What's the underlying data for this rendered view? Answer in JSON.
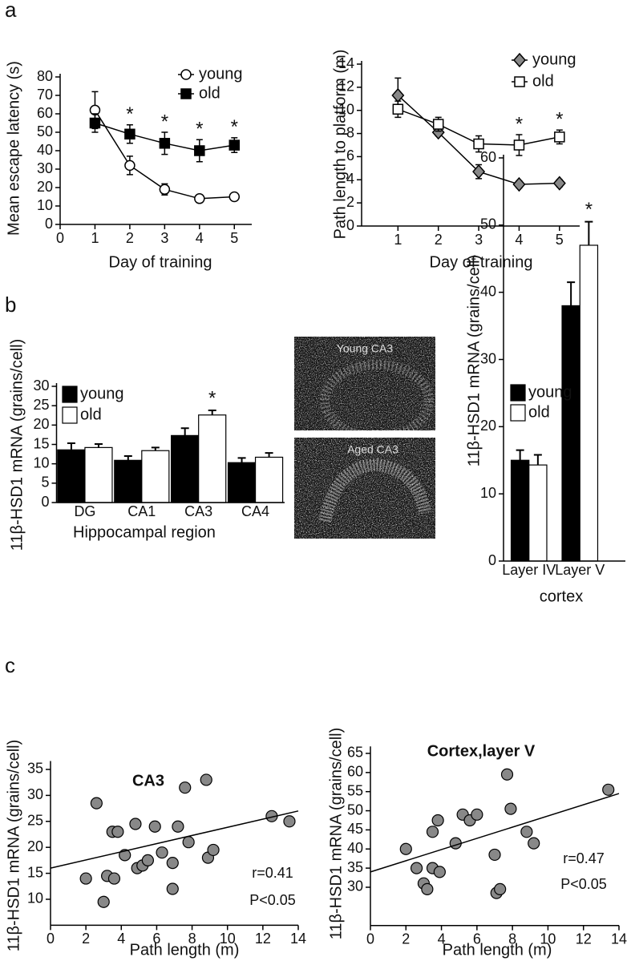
{
  "panel_labels": [
    "a",
    "b",
    "c"
  ],
  "micrographs": [
    "Young CA3",
    "Aged CA3"
  ],
  "chart_data": [
    {
      "type": "line",
      "xlabel": "Day of training",
      "ylabel": "Mean escape latency (s)",
      "x": [
        1,
        2,
        3,
        4,
        5
      ],
      "xlim": [
        0,
        5.5
      ],
      "xticks": [
        0,
        1,
        2,
        3,
        4,
        5
      ],
      "ylim": [
        0,
        80
      ],
      "yticks": [
        0,
        10,
        20,
        30,
        40,
        50,
        60,
        70,
        80
      ],
      "series": [
        {
          "name": "young",
          "color": "#000000",
          "marker": "circle-open",
          "values": [
            62,
            32,
            19,
            14,
            15
          ],
          "errors": [
            10,
            5,
            3,
            1,
            1
          ]
        },
        {
          "name": "old",
          "color": "#000000",
          "marker": "square-filled",
          "values": [
            55,
            49,
            44,
            40,
            43
          ],
          "errors": [
            5,
            5,
            6,
            6,
            4
          ]
        }
      ],
      "annotations": [
        {
          "text": "*",
          "x": 2
        },
        {
          "text": "*",
          "x": 3
        },
        {
          "text": "*",
          "x": 4
        },
        {
          "text": "*",
          "x": 5
        }
      ]
    },
    {
      "type": "line",
      "xlabel": "Day of training",
      "ylabel": "Path length to platform (m)",
      "x": [
        1,
        2,
        3,
        4,
        5
      ],
      "xlim": [
        0.1,
        5.5
      ],
      "xticks": [
        1,
        2,
        3,
        4,
        5
      ],
      "ylim": [
        0,
        14
      ],
      "yticks": [
        0,
        2,
        4,
        6,
        8,
        10,
        12,
        14
      ],
      "series": [
        {
          "name": "young",
          "color": "#888888",
          "marker": "diamond-filled",
          "values": [
            11.3,
            8.1,
            4.7,
            3.6,
            3.7
          ],
          "errors": [
            1.5,
            0.3,
            0.6,
            0.3,
            0.3
          ]
        },
        {
          "name": "old",
          "color": "#000000",
          "marker": "square-open",
          "values": [
            10.1,
            8.8,
            7.1,
            7.0,
            7.7
          ],
          "errors": [
            0.7,
            0.6,
            0.7,
            0.9,
            0.6
          ]
        }
      ],
      "annotations": [
        {
          "text": "*",
          "x": 4
        },
        {
          "text": "*",
          "x": 5
        }
      ]
    },
    {
      "type": "bar",
      "xlabel": "Hippocampal region",
      "ylabel": "11β-HSD1 mRNA (grains/cell)",
      "categories": [
        "DG",
        "CA1",
        "CA3",
        "CA4"
      ],
      "ylim": [
        0,
        30
      ],
      "yticks": [
        0,
        5,
        10,
        15,
        20,
        25,
        30
      ],
      "series": [
        {
          "name": "young",
          "color": "#000000",
          "values": [
            13.6,
            10.9,
            17.3,
            10.3
          ],
          "errors": [
            1.7,
            1.1,
            1.9,
            1.2
          ]
        },
        {
          "name": "old",
          "color": "#ffffff",
          "values": [
            14.2,
            13.4,
            22.6,
            11.7
          ],
          "errors": [
            0.9,
            0.8,
            1.2,
            1.1
          ]
        }
      ],
      "annotations": [
        {
          "text": "*",
          "category": 2
        }
      ]
    },
    {
      "type": "bar",
      "xlabel": "cortex",
      "ylabel": "11β-HSD1 mRNA (grains/cell)",
      "categories": [
        "Layer IV",
        "Layer V"
      ],
      "ylim": [
        0,
        60
      ],
      "yticks": [
        0,
        10,
        20,
        30,
        40,
        50,
        60
      ],
      "series": [
        {
          "name": "young",
          "color": "#000000",
          "values": [
            15,
            38
          ],
          "errors": [
            1.5,
            3.5
          ]
        },
        {
          "name": "old",
          "color": "#ffffff",
          "values": [
            14.3,
            47
          ],
          "errors": [
            1.5,
            3.5
          ]
        }
      ],
      "annotations": [
        {
          "text": "*",
          "category": 1
        }
      ]
    },
    {
      "type": "scatter",
      "title": "CA3",
      "xlabel": "Path length (m)",
      "ylabel": "11β-HSD1 mRNA (grains/cell)",
      "xlim": [
        0,
        14
      ],
      "xticks": [
        0,
        2,
        4,
        6,
        8,
        10,
        12,
        14
      ],
      "ylim": [
        5,
        36
      ],
      "yticks": [
        10,
        15,
        20,
        25,
        30,
        35
      ],
      "color": "#888888",
      "x": [
        2,
        2.6,
        3.0,
        3.2,
        3.5,
        3.6,
        3.8,
        4.2,
        4.8,
        4.9,
        5.2,
        5.5,
        5.9,
        6.3,
        6.9,
        6.9,
        7.2,
        7.6,
        7.8,
        8.8,
        8.9,
        9.2,
        12.5,
        13.5
      ],
      "values": [
        14,
        28.5,
        9.5,
        14.5,
        23,
        14,
        23,
        18.5,
        24.5,
        16,
        16.5,
        17.5,
        24,
        19,
        12,
        17,
        24,
        31.5,
        21,
        33,
        18,
        19.5,
        26,
        25
      ],
      "fit": {
        "x": [
          0,
          14
        ],
        "y": [
          16,
          27
        ]
      },
      "annotations": [
        "r=0.41",
        "P<0.05"
      ]
    },
    {
      "type": "scatter",
      "title": "Cortex,layer V",
      "xlabel": "Path length (m)",
      "ylabel": "11β-HSD1 mRNA (grains/cell)",
      "xlim": [
        0,
        14
      ],
      "xticks": [
        0,
        2,
        4,
        6,
        8,
        10,
        12,
        14
      ],
      "ylim": [
        20,
        66
      ],
      "yticks": [
        30,
        35,
        40,
        45,
        50,
        55,
        60,
        65
      ],
      "color": "#888888",
      "x": [
        2,
        2.6,
        3.0,
        3.2,
        3.5,
        3.5,
        3.8,
        3.9,
        4.8,
        5.2,
        5.6,
        6.0,
        7.0,
        7.1,
        7.3,
        7.7,
        7.9,
        8.8,
        9.2,
        13.4
      ],
      "values": [
        40,
        35,
        31,
        29.5,
        44.5,
        35,
        47.5,
        34,
        41.5,
        49,
        47.5,
        49,
        38.5,
        28.5,
        29.5,
        59.5,
        50.5,
        44.5,
        41.5,
        55.5
      ],
      "fit": {
        "x": [
          0,
          14
        ],
        "y": [
          34,
          54.5
        ]
      },
      "annotations": [
        "r=0.47",
        "P<0.05"
      ]
    }
  ]
}
